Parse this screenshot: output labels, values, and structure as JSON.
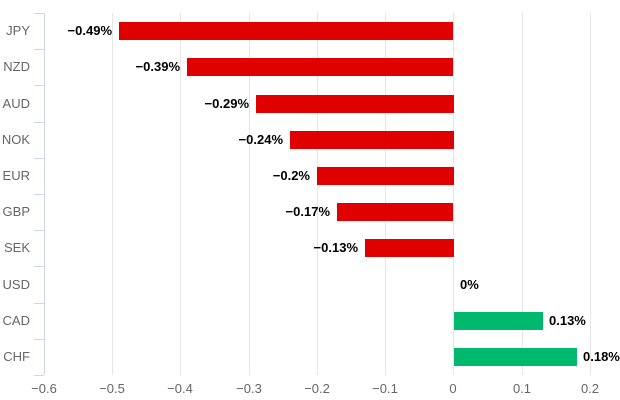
{
  "chart_data": {
    "type": "bar",
    "orientation": "horizontal",
    "title": "",
    "xlabel": "",
    "ylabel": "",
    "categories": [
      "JPY",
      "NZD",
      "AUD",
      "NOK",
      "EUR",
      "GBP",
      "SEK",
      "USD",
      "CAD",
      "CHF"
    ],
    "values": [
      -0.49,
      -0.39,
      -0.29,
      -0.24,
      -0.2,
      -0.17,
      -0.13,
      0,
      0.13,
      0.18
    ],
    "value_labels": [
      "−0.49%",
      "−0.39%",
      "−0.29%",
      "−0.24%",
      "−0.2%",
      "−0.17%",
      "−0.13%",
      "0%",
      "0.13%",
      "0.18%"
    ],
    "xlim": [
      -0.6,
      0.2
    ],
    "xticks": [
      -0.6,
      -0.5,
      -0.4,
      -0.3,
      -0.2,
      -0.1,
      0,
      0.1,
      0.2
    ],
    "xtick_labels": [
      "−0.6",
      "−0.5",
      "−0.4",
      "−0.3",
      "−0.2",
      "−0.1",
      "0",
      "0.1",
      "0.2"
    ],
    "grid": true,
    "legend": "none",
    "colors": {
      "negative_bar": "#e00000",
      "positive_bar": "#00b96e",
      "grid_line": "#e6e6e6",
      "axis_line": "#ccd6eb",
      "category_label": "#666666",
      "tick_label": "#666666",
      "data_label": "#000000",
      "background": "#ffffff"
    }
  }
}
